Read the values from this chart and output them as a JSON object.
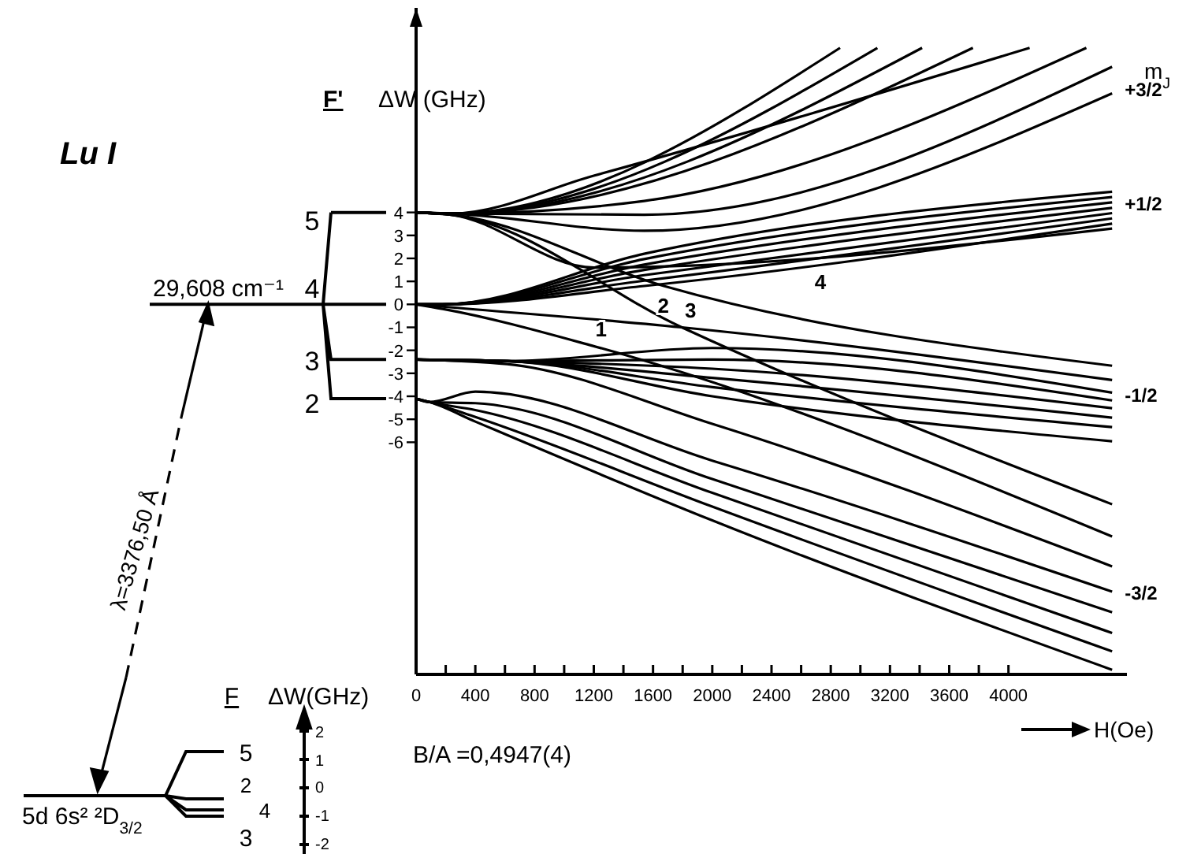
{
  "chart_data": {
    "type": "line",
    "ylabel": "ΔW (GHz)",
    "xlabel": "H(Oe)",
    "xlim": [
      0,
      4800
    ],
    "ylim": [
      -16.1,
      12.9
    ],
    "xticks": [
      0,
      {
        "value": 200,
        "label": null
      },
      400,
      {
        "value": 600,
        "label": null
      },
      800,
      {
        "value": 1000,
        "label": null
      },
      1200,
      {
        "value": 1400,
        "label": null
      },
      1600,
      {
        "value": 1800,
        "label": null
      },
      2000,
      {
        "value": 2200,
        "label": null
      },
      2400,
      {
        "value": 2600,
        "label": null
      },
      2800,
      {
        "value": 3000,
        "label": null
      },
      3200,
      {
        "value": 3400,
        "label": null
      },
      3600,
      {
        "value": 3800,
        "label": null
      },
      4000
    ],
    "yticks": [
      -6,
      -5,
      -4,
      -3,
      -2,
      -1,
      0,
      1,
      2,
      3,
      4
    ],
    "grid": false,
    "marker": "none",
    "line_style": "solid",
    "series": [
      {
        "color": "#000000",
        "x": [
          0,
          240,
          2863
        ],
        "values": [
          4,
          3.95,
          11.16
        ]
      },
      {
        "color": "#000000",
        "x": [
          0,
          240,
          3115
        ],
        "values": [
          4,
          3.95,
          11.16
        ]
      },
      {
        "color": "#000000",
        "x": [
          0,
          240,
          3417
        ],
        "values": [
          4,
          3.95,
          11.16
        ]
      },
      {
        "color": "#000000",
        "x": [
          0,
          240,
          3760
        ],
        "values": [
          4,
          3.95,
          11.16
        ]
      },
      {
        "color": "#000000",
        "x": [
          0,
          240,
          1200,
          4143
        ],
        "values": [
          4,
          3.95,
          5.6,
          11.16
        ]
      },
      {
        "color": "#000000",
        "x": [
          0,
          240,
          1540,
          4526
        ],
        "values": [
          4,
          3.95,
          4.5,
          11.16
        ]
      },
      {
        "color": "#000000",
        "x": [
          0,
          240,
          1540,
          4700
        ],
        "values": [
          4,
          3.95,
          3.9,
          10.34
        ]
      },
      {
        "color": "#000000",
        "x": [
          0,
          240,
          1540,
          4700
        ],
        "values": [
          4,
          3.95,
          3.2,
          9.18
        ]
      },
      {
        "color": "#000000",
        "x": [
          0,
          240,
          1200,
          4700
        ],
        "values": [
          4,
          3.9,
          1.6,
          3.3
        ]
      },
      {
        "color": "#000000",
        "x": [
          0,
          240,
          1673,
          4700
        ],
        "values": [
          4,
          3.9,
          0.8,
          -2.67
        ]
      },
      {
        "color": "#000000",
        "x": [
          0,
          240,
          1794,
          4700
        ],
        "values": [
          4,
          3.9,
          -1.0,
          -8.7
        ]
      },
      {
        "color": "#000000",
        "x": [
          0,
          180,
          1540,
          4700
        ],
        "values": [
          0,
          0,
          2.2,
          4.9
        ]
      },
      {
        "color": "#000000",
        "x": [
          0,
          180,
          1540,
          4700
        ],
        "values": [
          0,
          0,
          1.97,
          4.67
        ]
      },
      {
        "color": "#000000",
        "x": [
          0,
          180,
          1540,
          4700
        ],
        "values": [
          0,
          0,
          1.73,
          4.44
        ]
      },
      {
        "color": "#000000",
        "x": [
          0,
          180,
          1540,
          4700
        ],
        "values": [
          0,
          0,
          1.5,
          4.2
        ]
      },
      {
        "color": "#000000",
        "x": [
          0,
          180,
          1540,
          4700
        ],
        "values": [
          0,
          0,
          1.27,
          3.97
        ]
      },
      {
        "color": "#000000",
        "x": [
          0,
          180,
          1540,
          4700
        ],
        "values": [
          0,
          0,
          1.03,
          3.74
        ]
      },
      {
        "color": "#000000",
        "x": [
          0,
          180,
          1540,
          4700
        ],
        "values": [
          0,
          0,
          0.8,
          3.51
        ]
      },
      {
        "color": "#000000",
        "x": [
          0,
          180,
          1794,
          4700
        ],
        "values": [
          0,
          -0.1,
          -1.0,
          -3.29
        ]
      },
      {
        "color": "#000000",
        "x": [
          0,
          180,
          1190,
          4700
        ],
        "values": [
          0,
          -0.2,
          -1.8,
          -10.1
        ]
      },
      {
        "color": "#000000",
        "x": [
          0,
          615,
          2000,
          4700
        ],
        "values": [
          -2.4,
          -2.47,
          -1.9,
          -3.84
        ]
      },
      {
        "color": "#000000",
        "x": [
          0,
          615,
          2000,
          4700
        ],
        "values": [
          -2.4,
          -2.47,
          -2.4,
          -4.18
        ]
      },
      {
        "color": "#000000",
        "x": [
          0,
          615,
          2000,
          4700
        ],
        "values": [
          -2.4,
          -2.47,
          -2.8,
          -4.52
        ]
      },
      {
        "color": "#000000",
        "x": [
          0,
          615,
          2000,
          4700
        ],
        "values": [
          -2.4,
          -2.47,
          -3.2,
          -4.93
        ]
      },
      {
        "color": "#000000",
        "x": [
          0,
          615,
          2000,
          4700
        ],
        "values": [
          -2.4,
          -2.47,
          -3.6,
          -5.34
        ]
      },
      {
        "color": "#000000",
        "x": [
          0,
          615,
          2000,
          4700
        ],
        "values": [
          -2.4,
          -2.47,
          -4.0,
          -5.96
        ]
      },
      {
        "color": "#000000",
        "x": [
          0,
          615,
          2000,
          4700
        ],
        "values": [
          -2.4,
          -2.6,
          -5.2,
          -11.4
        ]
      },
      {
        "color": "#000000",
        "x": [
          0,
          90,
          400,
          2000,
          4700
        ],
        "values": [
          -4.1,
          -4.25,
          -3.8,
          -6.8,
          -12.5
        ]
      },
      {
        "color": "#000000",
        "x": [
          0,
          90,
          400,
          2000,
          4700
        ],
        "values": [
          -4.1,
          -4.25,
          -4.3,
          -7.6,
          -13.4
        ]
      },
      {
        "color": "#000000",
        "x": [
          0,
          90,
          400,
          2000,
          4700
        ],
        "values": [
          -4.1,
          -4.25,
          -4.6,
          -8.2,
          -14.3
        ]
      },
      {
        "color": "#000000",
        "x": [
          0,
          90,
          400,
          2000,
          4700
        ],
        "values": [
          -4.1,
          -4.25,
          -4.9,
          -8.8,
          -15.1
        ]
      },
      {
        "color": "#000000",
        "x": [
          0,
          90,
          400,
          2000,
          4700
        ],
        "values": [
          -4.1,
          -4.25,
          -5.1,
          -9.4,
          -15.9
        ]
      }
    ],
    "annotations": [
      "Lu I",
      "F'",
      "29,608 cm⁻¹",
      "5",
      "4",
      "3",
      "2",
      "λ=3376,50 Å",
      "F",
      "ΔW(GHz)",
      "5",
      "2",
      "4",
      "3",
      "2",
      "1",
      "0",
      "-1",
      "-2",
      "5d 6s² ²D$_{3/2}$",
      "B/A =0,4947(4)",
      "m$_{J}$",
      {
        "text": "+3/2",
        "x": 4700,
        "y": 9.4
      },
      {
        "text": "+1/2",
        "x": 4700,
        "y": 4.45
      },
      {
        "text": "-1/2",
        "x": 4700,
        "y": -3.9
      },
      {
        "text": "-3/2",
        "x": 4700,
        "y": -12.5
      },
      {
        "text": "1",
        "x": 1190,
        "y": -1.8
      },
      {
        "text": "2",
        "x": 1673,
        "y": 0.8
      },
      {
        "text": "3",
        "x": 1794,
        "y": -1.0
      },
      {
        "text": "4",
        "x": 2712,
        "y": 2.05
      }
    ]
  }
}
